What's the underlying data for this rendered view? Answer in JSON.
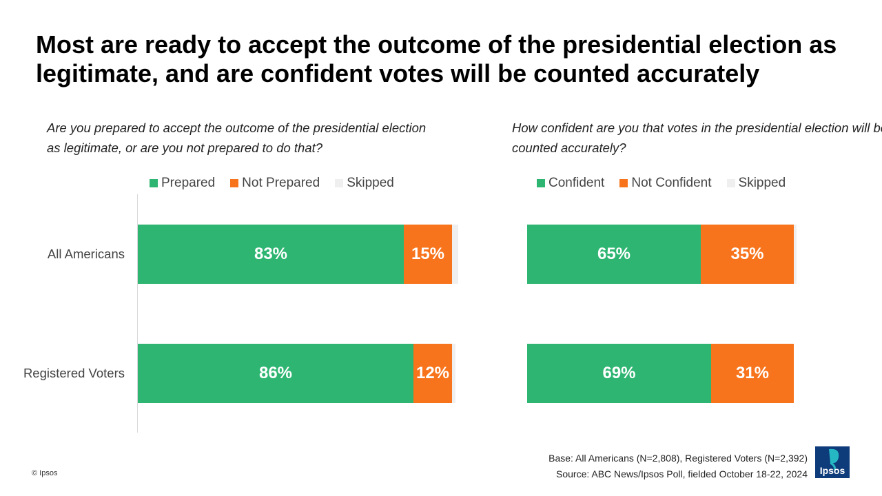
{
  "title": "Most are ready to accept the outcome of the presidential election as legitimate, and are confident votes will be counted accurately",
  "colors": {
    "green": "#2db571",
    "orange": "#f8741c",
    "skipped": "#efefef",
    "logo_blue": "#0e3b7a",
    "logo_teal": "#26b7c4"
  },
  "left_panel": {
    "question": "Are you prepared to accept the outcome of the presidential election as legitimate, or are you not prepared to do that?",
    "legend": [
      "Prepared",
      "Not Prepared",
      "Skipped"
    ]
  },
  "right_panel": {
    "question": "How confident are you that votes in the presidential election will be counted accurately?",
    "legend": [
      "Confident",
      "Not Confident",
      "Skipped"
    ]
  },
  "row_labels": [
    "All Americans",
    "Registered Voters"
  ],
  "chart_data": [
    {
      "type": "bar",
      "orientation": "horizontal",
      "stacked": true,
      "title": "Are you prepared to accept the outcome of the presidential election as legitimate, or are you not prepared to do that?",
      "categories": [
        "All Americans",
        "Registered Voters"
      ],
      "series": [
        {
          "name": "Prepared",
          "values": [
            83,
            86
          ],
          "labels": [
            "83%",
            "86%"
          ]
        },
        {
          "name": "Not Prepared",
          "values": [
            15,
            12
          ],
          "labels": [
            "15%",
            "12%"
          ]
        },
        {
          "name": "Skipped",
          "values": [
            2,
            1
          ],
          "labels": [
            "",
            ""
          ]
        }
      ],
      "xlim": [
        0,
        100
      ],
      "grid": false,
      "legend_position": "top"
    },
    {
      "type": "bar",
      "orientation": "horizontal",
      "stacked": true,
      "title": "How confident are you that votes in the presidential election will be counted accurately?",
      "categories": [
        "All Americans",
        "Registered Voters"
      ],
      "series": [
        {
          "name": "Confident",
          "values": [
            65,
            69
          ],
          "labels": [
            "65%",
            "69%"
          ]
        },
        {
          "name": "Not Confident",
          "values": [
            35,
            31
          ],
          "labels": [
            "35%",
            "31%"
          ]
        },
        {
          "name": "Skipped",
          "values": [
            1,
            0
          ],
          "labels": [
            "",
            ""
          ]
        }
      ],
      "xlim": [
        0,
        100
      ],
      "grid": false,
      "legend_position": "top"
    }
  ],
  "footer": {
    "base": "Base: All Americans (N=2,808), Registered Voters (N=2,392)",
    "source": "Source: ABC News/Ipsos Poll, fielded October 18-22, 2024",
    "copyright": "© Ipsos",
    "logo_text": "Ipsos"
  }
}
